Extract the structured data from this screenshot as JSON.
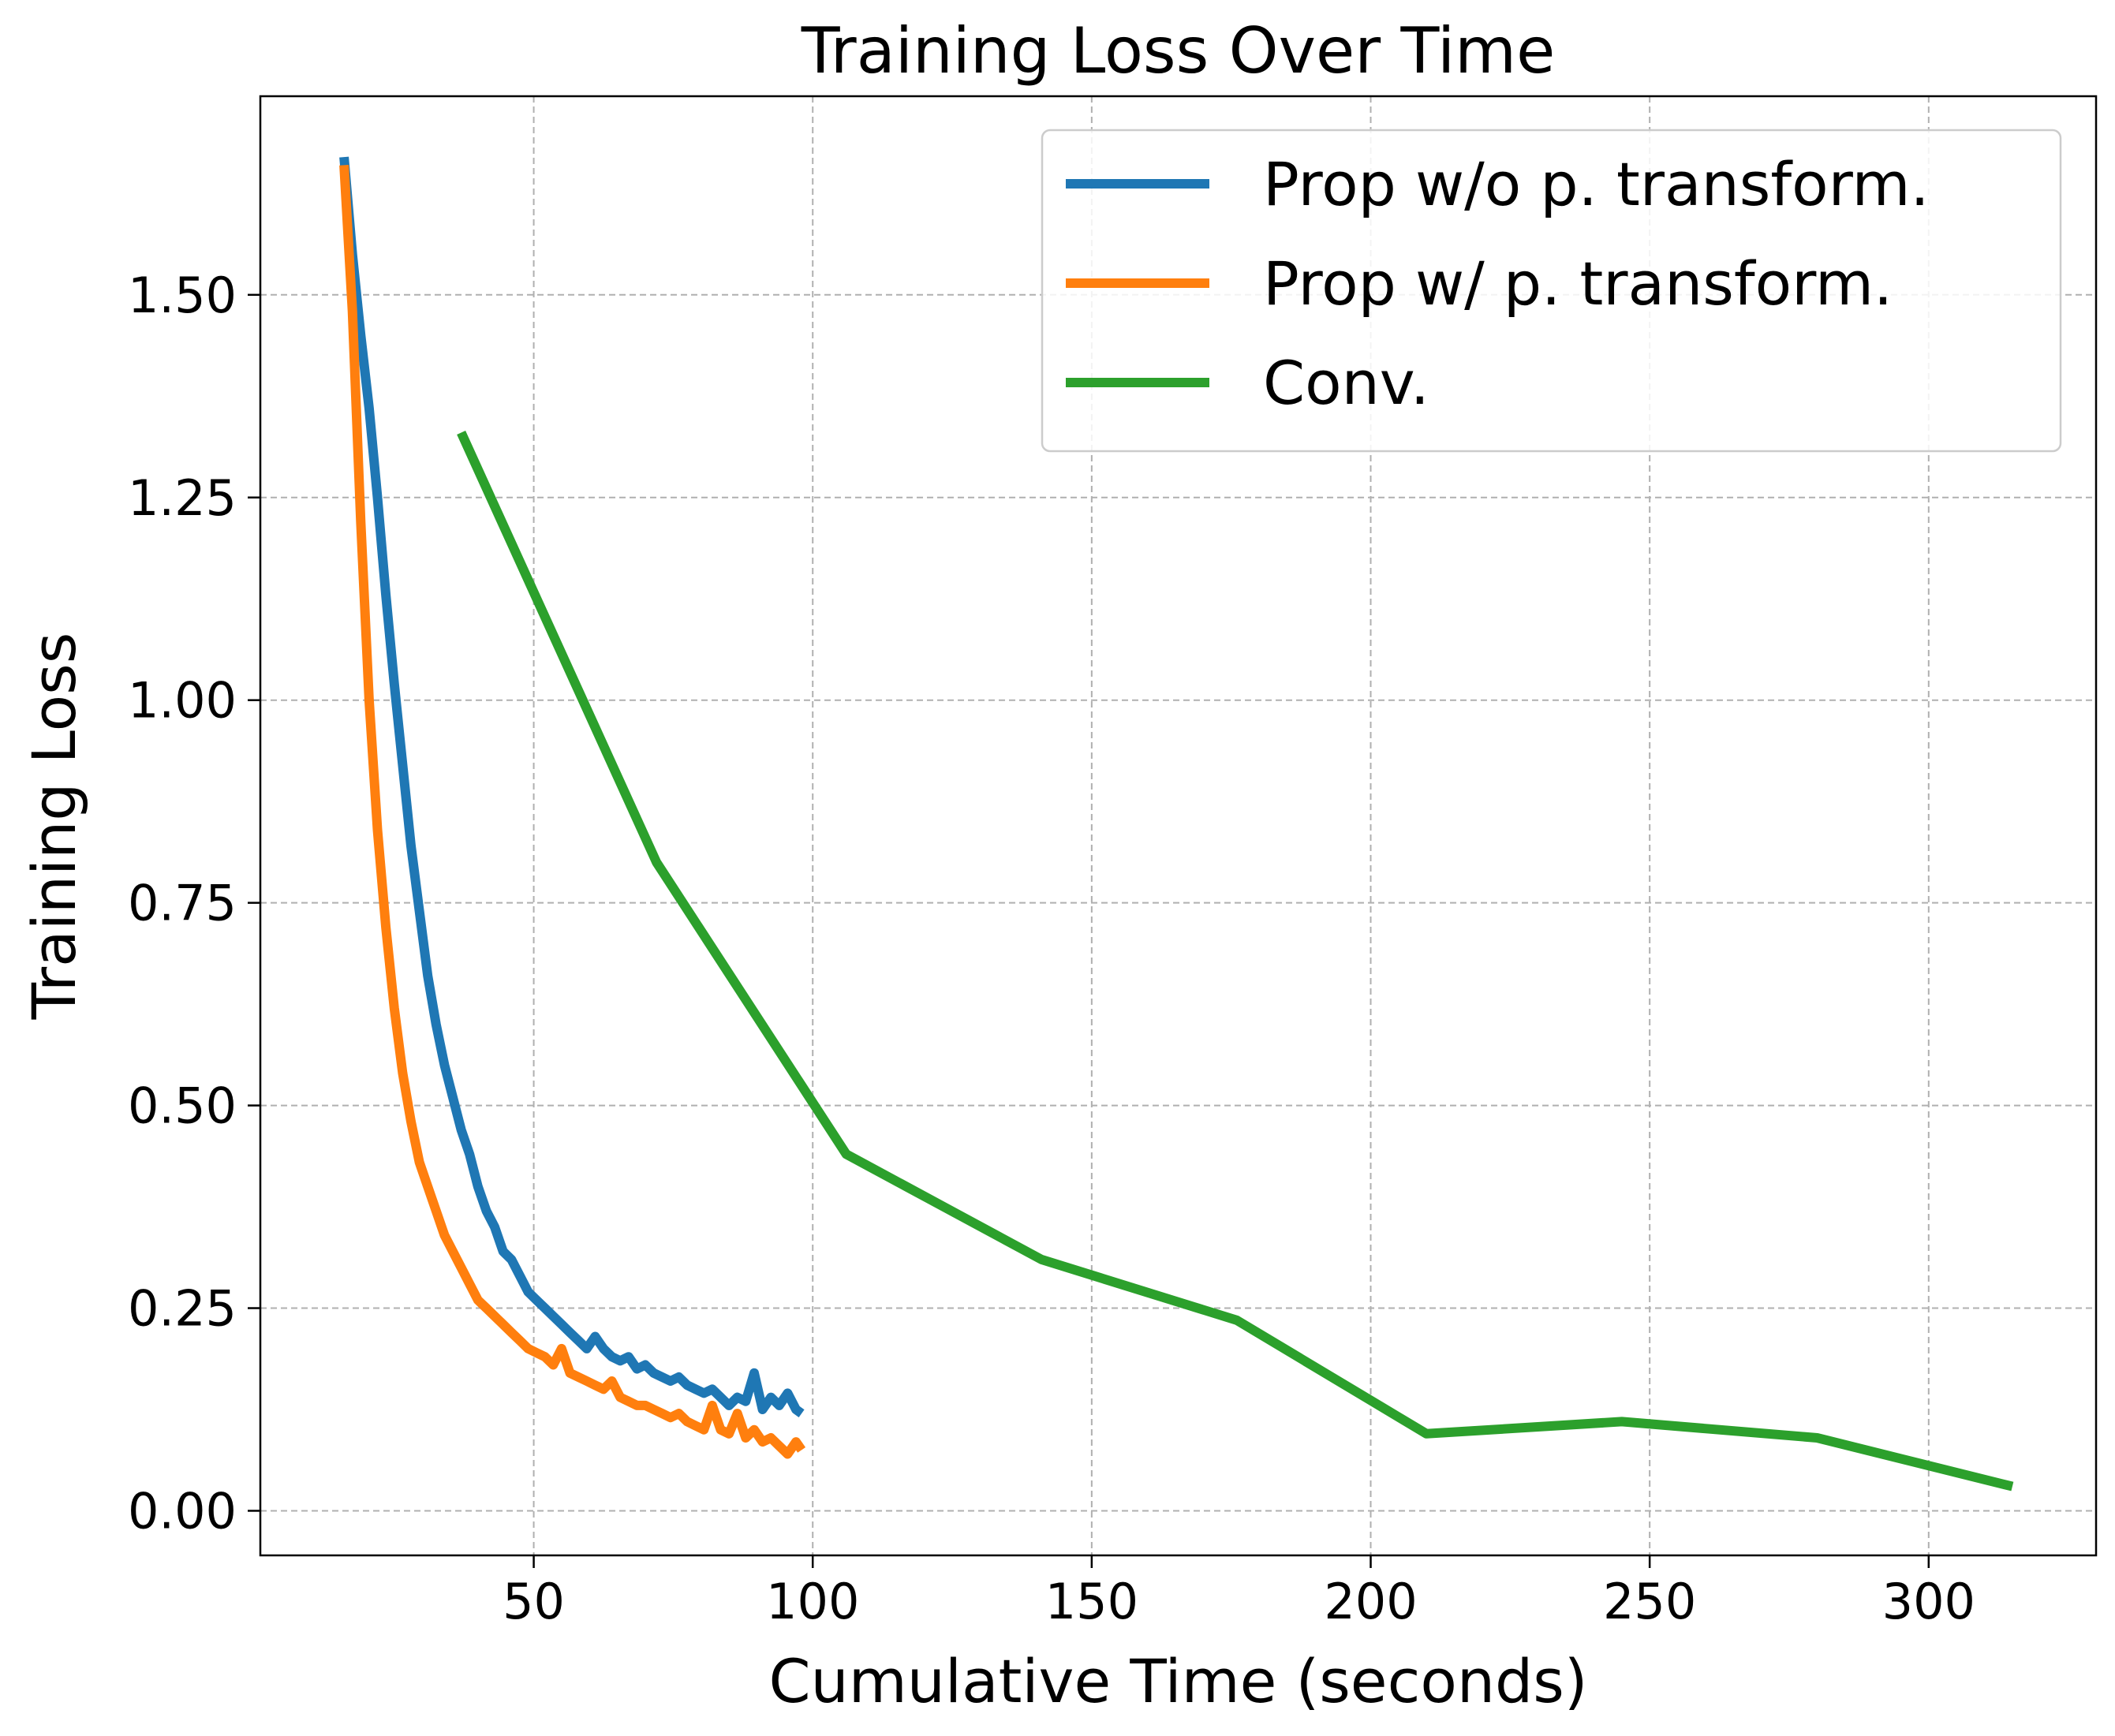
{
  "chart_data": {
    "type": "line",
    "title": "Training Loss Over Time",
    "xlabel": "Cumulative Time (seconds)",
    "ylabel": "Training Loss",
    "xlim": [
      1,
      330
    ],
    "ylim": [
      -0.055,
      1.745
    ],
    "xticks": [
      50,
      100,
      150,
      200,
      250,
      300
    ],
    "yticks": [
      0.0,
      0.25,
      0.5,
      0.75,
      1.0,
      1.25,
      1.5
    ],
    "ytick_labels": [
      "0.00",
      "0.25",
      "0.50",
      "0.75",
      "1.00",
      "1.25",
      "1.50"
    ],
    "grid": true,
    "legend_position": "top-right",
    "series": [
      {
        "name": "Prop w/o p. transform.",
        "color": "#1f77b4",
        "x": [
          16,
          17.5,
          19,
          20.5,
          22,
          23.5,
          25,
          26.5,
          28,
          29.5,
          31,
          32.5,
          34,
          35.5,
          37,
          38.5,
          40,
          41.5,
          43,
          44.5,
          46,
          47.5,
          49,
          50.5,
          52,
          53.5,
          55,
          56.5,
          58,
          59.5,
          61,
          62.5,
          64,
          65.5,
          67,
          68.5,
          70,
          71.5,
          73,
          74.5,
          76,
          77.5,
          79,
          80.5,
          82,
          83.5,
          85,
          86.5,
          88,
          89.5,
          91,
          92.5,
          94,
          95.5,
          97,
          98
        ],
        "y": [
          1.67,
          1.55,
          1.45,
          1.36,
          1.25,
          1.13,
          1.02,
          0.92,
          0.82,
          0.74,
          0.66,
          0.6,
          0.55,
          0.51,
          0.47,
          0.44,
          0.4,
          0.37,
          0.35,
          0.32,
          0.31,
          0.29,
          0.27,
          0.26,
          0.25,
          0.24,
          0.23,
          0.22,
          0.21,
          0.2,
          0.215,
          0.2,
          0.19,
          0.185,
          0.19,
          0.175,
          0.18,
          0.17,
          0.165,
          0.16,
          0.165,
          0.155,
          0.15,
          0.145,
          0.15,
          0.14,
          0.13,
          0.14,
          0.135,
          0.17,
          0.125,
          0.14,
          0.13,
          0.145,
          0.125,
          0.12
        ]
      },
      {
        "name": "Prop w/ p. transform.",
        "color": "#ff7f0e",
        "x": [
          16,
          17.5,
          19,
          20.5,
          22,
          23.5,
          25,
          26.5,
          28,
          29.5,
          31,
          32.5,
          34,
          35.5,
          37,
          38.5,
          40,
          41.5,
          43,
          44.5,
          46,
          47.5,
          49,
          50.5,
          52,
          53.5,
          55,
          56.5,
          58,
          59.5,
          61,
          62.5,
          64,
          65.5,
          67,
          68.5,
          70,
          71.5,
          73,
          74.5,
          76,
          77.5,
          79,
          80.5,
          82,
          83.5,
          85,
          86.5,
          88,
          89.5,
          91,
          92.5,
          94,
          95.5,
          97,
          98
        ],
        "y": [
          1.66,
          1.48,
          1.22,
          1.0,
          0.84,
          0.72,
          0.62,
          0.54,
          0.48,
          0.43,
          0.4,
          0.37,
          0.34,
          0.32,
          0.3,
          0.28,
          0.26,
          0.25,
          0.24,
          0.23,
          0.22,
          0.21,
          0.2,
          0.195,
          0.19,
          0.18,
          0.2,
          0.17,
          0.165,
          0.16,
          0.155,
          0.15,
          0.16,
          0.14,
          0.135,
          0.13,
          0.13,
          0.125,
          0.12,
          0.115,
          0.12,
          0.11,
          0.105,
          0.1,
          0.13,
          0.1,
          0.095,
          0.12,
          0.09,
          0.1,
          0.085,
          0.09,
          0.08,
          0.07,
          0.085,
          0.075
        ]
      },
      {
        "name": "Conv.",
        "color": "#2ca02c",
        "x": [
          37,
          72,
          106,
          141,
          176,
          210,
          245,
          280,
          315
        ],
        "y": [
          1.33,
          0.8,
          0.44,
          0.31,
          0.235,
          0.095,
          0.11,
          0.09,
          0.03
        ]
      }
    ]
  }
}
